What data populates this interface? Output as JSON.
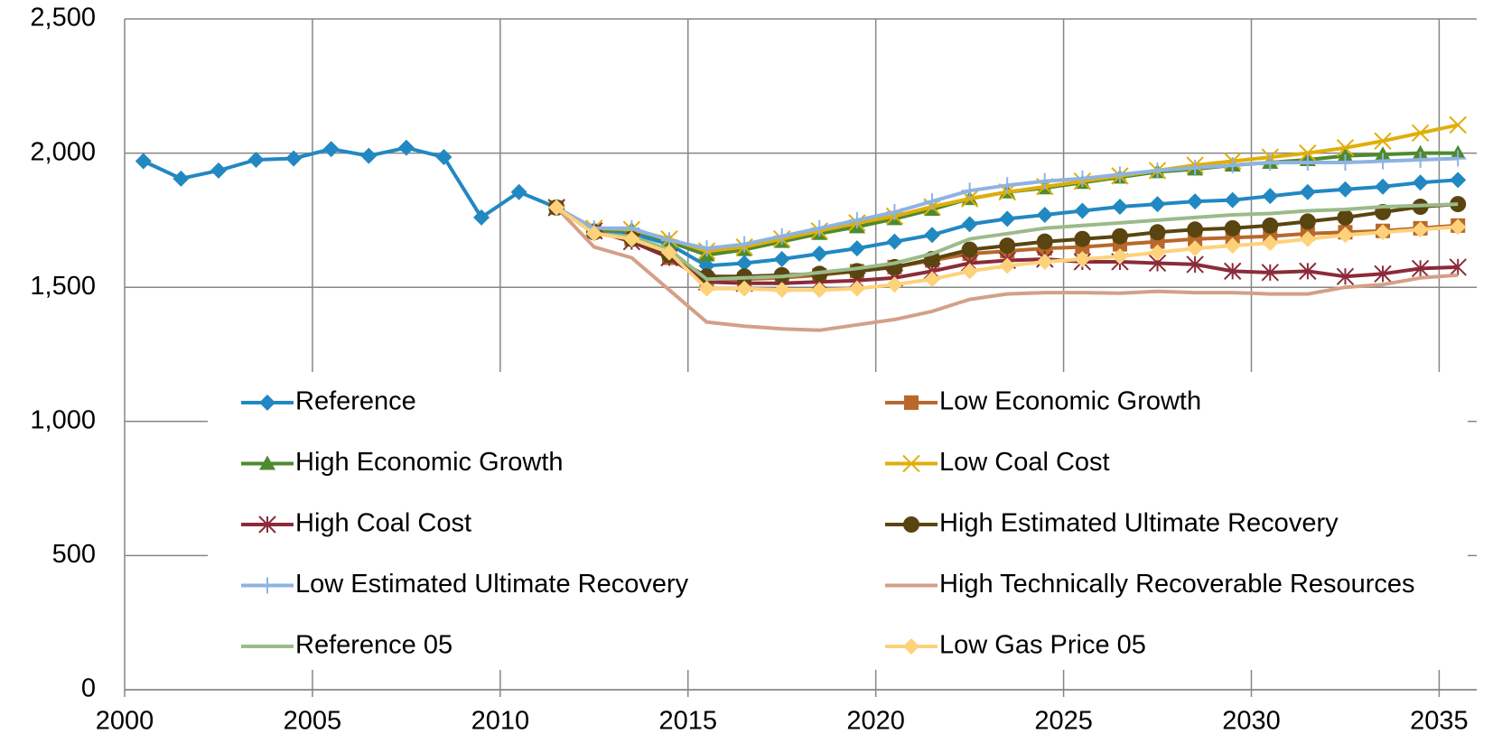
{
  "chart_data": {
    "type": "line",
    "categories": [
      "2000",
      null,
      null,
      null,
      null,
      "2005",
      null,
      null,
      null,
      null,
      "2010",
      null,
      null,
      null,
      null,
      "2015",
      null,
      null,
      null,
      null,
      "2020",
      null,
      null,
      null,
      null,
      "2025",
      null,
      null,
      null,
      null,
      "2030",
      null,
      null,
      null,
      null,
      "2035"
    ],
    "ylim": [
      0,
      2500
    ],
    "yticks": [
      0,
      500,
      {
        "value": 1000,
        "label": "1,000"
      },
      {
        "value": 1500,
        "label": "1,500"
      },
      {
        "value": 2000,
        "label": "2,000"
      },
      {
        "value": 2500,
        "label": "2,500"
      }
    ],
    "grid": true,
    "legend": "inside",
    "series": [
      {
        "name": "Reference",
        "color": "#2188c2",
        "marker": "diamond",
        "values": [
          1970,
          1905,
          1935,
          1975,
          1980,
          2015,
          1990,
          2020,
          1985,
          1760,
          1855,
          1797,
          1710,
          1700,
          1660,
          1580,
          1590,
          1605,
          1625,
          1645,
          1670,
          1695,
          1735,
          1755,
          1770,
          1785,
          1800,
          1810,
          1820,
          1825,
          1840,
          1855,
          1865,
          1875,
          1890,
          1900
        ]
      },
      {
        "name": "Low Economic Growth",
        "color": "#b8682a",
        "marker": "square",
        "values": [
          null,
          null,
          null,
          null,
          null,
          null,
          null,
          null,
          null,
          null,
          null,
          1797,
          1710,
          1680,
          1610,
          1530,
          1530,
          1535,
          1545,
          1560,
          1575,
          1600,
          1625,
          1635,
          1645,
          1650,
          1660,
          1670,
          1680,
          1685,
          1690,
          1700,
          1705,
          1710,
          1720,
          1730
        ]
      },
      {
        "name": "High Economic Growth",
        "color": "#4e8a2e",
        "marker": "triangle",
        "values": [
          null,
          null,
          null,
          null,
          null,
          null,
          null,
          null,
          null,
          null,
          null,
          1797,
          1715,
          1715,
          1670,
          1620,
          1640,
          1670,
          1700,
          1725,
          1755,
          1790,
          1830,
          1855,
          1870,
          1890,
          1910,
          1930,
          1940,
          1955,
          1965,
          1975,
          1990,
          1995,
          2000,
          2000
        ]
      },
      {
        "name": "Low Coal Cost",
        "color": "#e0ae08",
        "marker": "x",
        "values": [
          null,
          null,
          null,
          null,
          null,
          null,
          null,
          null,
          null,
          null,
          null,
          1797,
          1720,
          1715,
          1680,
          1635,
          1650,
          1680,
          1710,
          1740,
          1765,
          1800,
          1830,
          1855,
          1875,
          1895,
          1915,
          1935,
          1955,
          1970,
          1985,
          2000,
          2020,
          2045,
          2075,
          2105
        ]
      },
      {
        "name": "High Coal Cost",
        "color": "#8b2b3a",
        "marker": "star",
        "values": [
          null,
          null,
          null,
          null,
          null,
          null,
          null,
          null,
          null,
          null,
          null,
          1797,
          1710,
          1670,
          1610,
          1520,
          1515,
          1515,
          1520,
          1525,
          1535,
          1560,
          1590,
          1600,
          1605,
          1595,
          1595,
          1590,
          1585,
          1560,
          1555,
          1560,
          1540,
          1550,
          1570,
          1575
        ]
      },
      {
        "name": "High Estimated Ultimate Recovery",
        "color": "#5a4510",
        "marker": "circle",
        "values": [
          null,
          null,
          null,
          null,
          null,
          null,
          null,
          null,
          null,
          null,
          null,
          1797,
          1705,
          1680,
          1620,
          1540,
          1540,
          1545,
          1550,
          1560,
          1575,
          1605,
          1640,
          1655,
          1670,
          1680,
          1690,
          1705,
          1715,
          1720,
          1730,
          1745,
          1760,
          1780,
          1800,
          1810
        ]
      },
      {
        "name": "Low Estimated Ultimate Recovery",
        "color": "#8db3e2",
        "marker": "plus",
        "values": [
          null,
          null,
          null,
          null,
          null,
          null,
          null,
          null,
          null,
          null,
          null,
          1797,
          1720,
          1720,
          1675,
          1645,
          1660,
          1690,
          1720,
          1750,
          1780,
          1820,
          1860,
          1880,
          1895,
          1905,
          1920,
          1935,
          1945,
          1955,
          1965,
          1965,
          1965,
          1970,
          1975,
          1980
        ]
      },
      {
        "name": "High Technically Recoverable Resources",
        "color": "#d4a088",
        "marker": "none",
        "values": [
          null,
          null,
          null,
          null,
          null,
          null,
          null,
          null,
          null,
          null,
          null,
          1797,
          1650,
          1610,
          1490,
          1370,
          1355,
          1345,
          1340,
          1360,
          1380,
          1410,
          1455,
          1475,
          1480,
          1480,
          1478,
          1485,
          1480,
          1480,
          1475,
          1475,
          1500,
          1510,
          1535,
          1545
        ]
      },
      {
        "name": "Reference 05",
        "color": "#9bbb8a",
        "marker": "none",
        "values": [
          null,
          null,
          null,
          null,
          null,
          null,
          null,
          null,
          null,
          null,
          null,
          1797,
          1700,
          1690,
          1640,
          1530,
          1535,
          1540,
          1555,
          1570,
          1590,
          1625,
          1680,
          1700,
          1720,
          1730,
          1740,
          1750,
          1760,
          1770,
          1775,
          1785,
          1790,
          1800,
          1805,
          1810
        ]
      },
      {
        "name": "Low Gas Price 05",
        "color": "#fdd27a",
        "marker": "diamond",
        "values": [
          null,
          null,
          null,
          null,
          null,
          null,
          null,
          null,
          null,
          null,
          null,
          1797,
          1700,
          1680,
          1630,
          1495,
          1495,
          1490,
          1490,
          1495,
          1510,
          1530,
          1560,
          1580,
          1595,
          1605,
          1615,
          1630,
          1645,
          1655,
          1665,
          1680,
          1695,
          1705,
          1715,
          1725
        ]
      }
    ]
  }
}
